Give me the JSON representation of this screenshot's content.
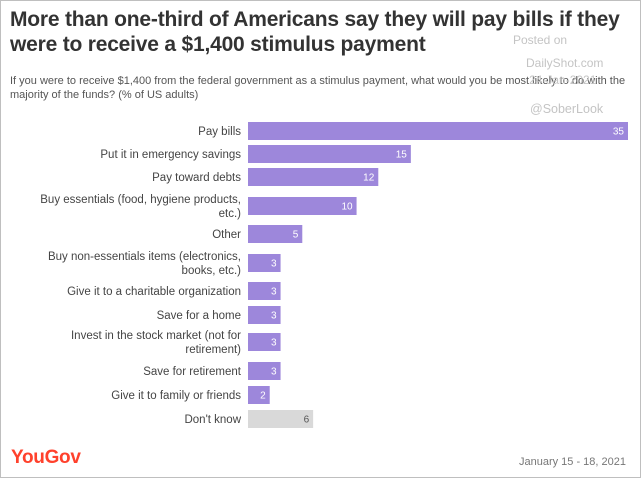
{
  "header": {
    "title": "More than one-third of Americans say they will pay bills if they were to receive a $1,400 stimulus payment",
    "subtitle": "If you were to receive $1,400 from the federal government as a stimulus payment, what would you be most likely to do with the majority of the funds? (% of US adults)"
  },
  "watermark": {
    "posted_on": "Posted on",
    "site": "DailyShot.com",
    "date": "24-Jan-2021",
    "handle": "@SoberLook"
  },
  "footer": {
    "brand": "YouGov",
    "dates": "January 15 - 18, 2021"
  },
  "colors": {
    "bar": "#9d87db",
    "bar_dont_know": "#d9d9d9",
    "label_on_bar": "#ffffff",
    "label_on_grey": "#555555",
    "brand": "#ff412c"
  },
  "chart_data": {
    "type": "bar",
    "orientation": "horizontal",
    "categories": [
      [
        "Pay bills"
      ],
      [
        "Put it in emergency savings"
      ],
      [
        "Pay toward debts"
      ],
      [
        "Buy essentials (food, hygiene products,",
        "etc.)"
      ],
      [
        "Other"
      ],
      [
        "Buy non-essentials items (electronics,",
        "books, etc.)"
      ],
      [
        "Give it to a charitable organization"
      ],
      [
        "Save for a home"
      ],
      [
        "Invest in the stock market (not for",
        "retirement)"
      ],
      [
        "Save for retirement"
      ],
      [
        "Give it to family or friends"
      ],
      [
        "Don't know"
      ]
    ],
    "values": [
      35,
      15,
      12,
      10,
      5,
      3,
      3,
      3,
      3,
      3,
      2,
      6
    ],
    "xlim": [
      0,
      35
    ],
    "grid": false,
    "legend": "none"
  }
}
